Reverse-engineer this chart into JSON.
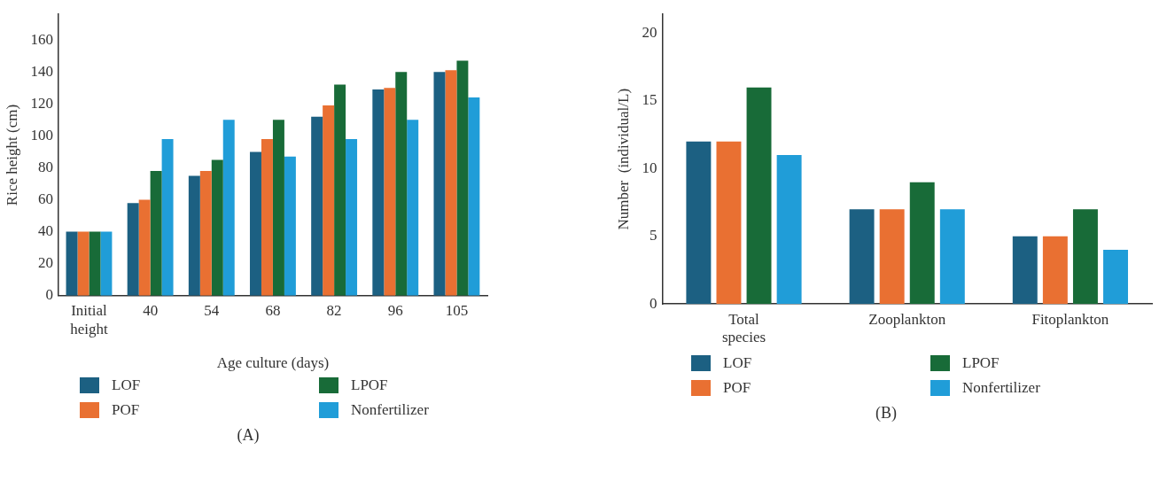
{
  "chart_data": [
    {
      "type": "bar",
      "xlabel": "Age culture (days)",
      "ylabel": "Rice height (cm)",
      "categories": [
        "Initial height",
        "40",
        "54",
        "68",
        "82",
        "96",
        "105"
      ],
      "series": [
        {
          "name": "LOF",
          "color": "#1c6082",
          "values": [
            40,
            58,
            75,
            90,
            112,
            129,
            140
          ]
        },
        {
          "name": "POF",
          "color": "#e97032",
          "values": [
            40,
            60,
            78,
            98,
            119,
            130,
            141
          ]
        },
        {
          "name": "LPOF",
          "color": "#186b38",
          "values": [
            40,
            78,
            85,
            110,
            132,
            140,
            147
          ]
        },
        {
          "name": "Nonfertilizer",
          "color": "#209dd8",
          "values": [
            40,
            98,
            110,
            87,
            98,
            110,
            124
          ]
        }
      ],
      "ylim": [
        0,
        176
      ],
      "yticks": [
        0,
        20,
        40,
        60,
        80,
        100,
        120,
        140,
        160
      ],
      "grid": false,
      "legend": "bottom",
      "annotations": [
        "(A)"
      ]
    },
    {
      "type": "bar",
      "ylabel": "Number  (individual/L)",
      "categories": [
        "Total species",
        "Zooplankton",
        "Fitoplankton"
      ],
      "series": [
        {
          "name": "LOF",
          "color": "#1c6082",
          "values": [
            12,
            7,
            5
          ]
        },
        {
          "name": "POF",
          "color": "#e97032",
          "values": [
            12,
            7,
            5
          ]
        },
        {
          "name": "LPOF",
          "color": "#186b38",
          "values": [
            16,
            9,
            7
          ]
        },
        {
          "name": "Nonfertilizer",
          "color": "#209dd8",
          "values": [
            11,
            7,
            4
          ]
        }
      ],
      "ylim": [
        0,
        21.4
      ],
      "yticks": [
        0,
        5,
        10,
        15,
        20
      ],
      "grid": false,
      "legend": "bottom",
      "annotations": [
        "(B)"
      ]
    }
  ]
}
